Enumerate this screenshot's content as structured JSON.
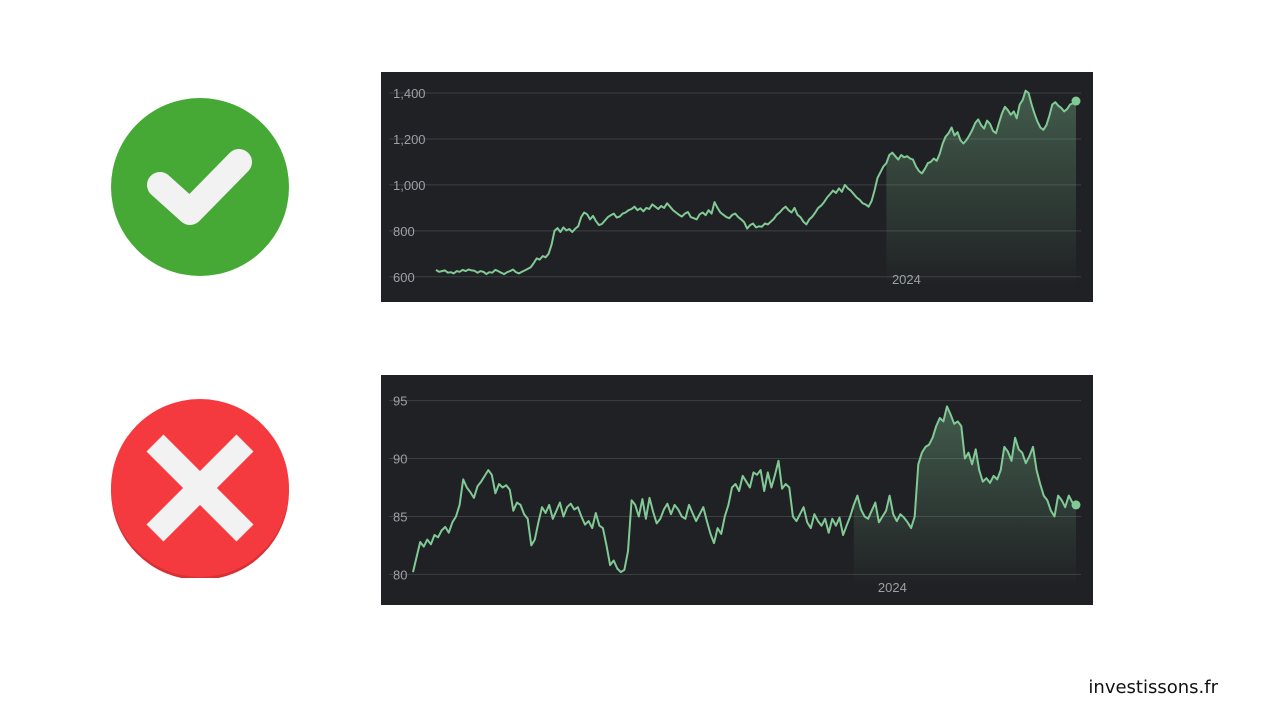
{
  "icons": [
    {
      "name": "check-icon",
      "color": "#46a935"
    },
    {
      "name": "cross-icon",
      "color": "#f53a3f"
    }
  ],
  "chart_data": [
    {
      "type": "area",
      "title": "",
      "xlabel": "",
      "ylabel": "",
      "ylim": [
        560,
        1400
      ],
      "yticks": [
        "600",
        "800",
        "1,000",
        "1,200",
        "1,400"
      ],
      "ytick_values": [
        600,
        800,
        1000,
        1200,
        1400
      ],
      "xtick_labels": [
        "2024"
      ],
      "xtick_positions": [
        0.735
      ],
      "grid": true,
      "line_color": "#81c995",
      "series": [
        {
          "values": [
            630,
            622,
            625,
            628,
            618,
            620,
            615,
            625,
            622,
            630,
            625,
            632,
            628,
            626,
            618,
            625,
            622,
            612,
            620,
            618,
            630,
            625,
            618,
            612,
            620,
            625,
            632,
            620,
            615,
            622,
            628,
            635,
            642,
            660,
            680,
            675,
            690,
            685,
            700,
            740,
            800,
            812,
            795,
            815,
            802,
            808,
            795,
            810,
            820,
            860,
            880,
            872,
            850,
            865,
            842,
            825,
            830,
            845,
            860,
            868,
            875,
            858,
            862,
            875,
            880,
            890,
            895,
            905,
            890,
            898,
            885,
            900,
            895,
            915,
            905,
            895,
            908,
            900,
            920,
            905,
            890,
            880,
            870,
            862,
            875,
            882,
            860,
            855,
            850,
            872,
            880,
            868,
            890,
            875,
            925,
            900,
            880,
            870,
            860,
            855,
            870,
            875,
            860,
            850,
            838,
            810,
            825,
            832,
            815,
            820,
            818,
            832,
            828,
            840,
            852,
            870,
            880,
            895,
            905,
            890,
            880,
            900,
            870,
            860,
            840,
            828,
            850,
            862,
            880,
            900,
            910,
            925,
            945,
            960,
            975,
            965,
            985,
            970,
            1000,
            985,
            975,
            960,
            945,
            935,
            920,
            915,
            905,
            930,
            975,
            1030,
            1055,
            1080,
            1095,
            1130,
            1140,
            1125,
            1110,
            1130,
            1120,
            1125,
            1115,
            1110,
            1080,
            1060,
            1050,
            1070,
            1095,
            1100,
            1115,
            1105,
            1135,
            1180,
            1210,
            1225,
            1250,
            1215,
            1230,
            1195,
            1180,
            1195,
            1215,
            1240,
            1270,
            1285,
            1260,
            1245,
            1280,
            1265,
            1235,
            1225,
            1270,
            1310,
            1340,
            1325,
            1305,
            1320,
            1290,
            1350,
            1370,
            1410,
            1400,
            1350,
            1310,
            1275,
            1250,
            1240,
            1260,
            1300,
            1350,
            1360,
            1345,
            1335,
            1320,
            1330,
            1350,
            1355,
            1365
          ]
        }
      ]
    },
    {
      "type": "area",
      "title": "",
      "xlabel": "",
      "ylabel": "",
      "ylim": [
        79,
        96
      ],
      "yticks": [
        "80",
        "85",
        "90",
        "95"
      ],
      "ytick_values": [
        80,
        85,
        90,
        95
      ],
      "xtick_labels": [
        "2024"
      ],
      "xtick_positions": [
        0.723
      ],
      "grid": true,
      "line_color": "#81c995",
      "series": [
        {
          "values": [
            80.2,
            81.5,
            82.8,
            82.4,
            83.0,
            82.6,
            83.4,
            83.2,
            83.8,
            84.1,
            83.6,
            84.5,
            85.0,
            86.0,
            88.2,
            87.5,
            87.1,
            86.6,
            87.6,
            88.0,
            88.5,
            89.0,
            88.6,
            87.0,
            87.8,
            87.5,
            87.7,
            87.3,
            85.5,
            86.2,
            86.0,
            85.2,
            84.8,
            82.5,
            83.0,
            84.5,
            85.8,
            85.3,
            86.0,
            84.8,
            85.5,
            86.2,
            85.0,
            85.8,
            86.1,
            85.6,
            85.8,
            85.0,
            84.3,
            84.6,
            84.0,
            85.3,
            84.2,
            84.0,
            82.5,
            80.8,
            81.2,
            80.5,
            80.2,
            80.4,
            82.0,
            86.4,
            86.0,
            85.0,
            86.5,
            84.8,
            86.6,
            85.4,
            84.4,
            84.8,
            85.6,
            86.1,
            85.2,
            86.0,
            85.6,
            85.0,
            84.8,
            86.0,
            85.3,
            84.6,
            85.2,
            85.8,
            84.6,
            83.5,
            82.7,
            84.0,
            83.5,
            85.0,
            86.0,
            87.5,
            87.8,
            87.2,
            88.5,
            88.0,
            87.5,
            88.8,
            88.6,
            89.0,
            87.2,
            88.8,
            87.5,
            88.6,
            89.8,
            87.4,
            87.8,
            87.5,
            85.0,
            84.6,
            85.2,
            85.8,
            84.5,
            84.0,
            85.2,
            84.6,
            84.2,
            84.8,
            83.6,
            84.8,
            84.2,
            84.9,
            83.4,
            84.2,
            85.0,
            86.0,
            86.8,
            85.6,
            85.0,
            84.8,
            85.5,
            86.2,
            84.5,
            85.0,
            85.5,
            86.8,
            85.2,
            84.6,
            85.2,
            84.9,
            84.5,
            84.0,
            85.0,
            89.5,
            90.5,
            91.0,
            91.2,
            91.8,
            92.8,
            93.5,
            93.2,
            94.5,
            93.8,
            93.0,
            93.2,
            92.8,
            90.0,
            90.5,
            89.5,
            90.8,
            89.0,
            88.0,
            88.3,
            87.9,
            88.5,
            88.2,
            89.0,
            91.0,
            90.6,
            89.8,
            91.8,
            90.8,
            90.5,
            89.6,
            90.2,
            91.0,
            89.0,
            87.8,
            86.8,
            86.4,
            85.5,
            85.0,
            86.8,
            86.4,
            85.8,
            86.8,
            86.2,
            86.0
          ]
        }
      ]
    }
  ],
  "brand": "investissons.fr"
}
